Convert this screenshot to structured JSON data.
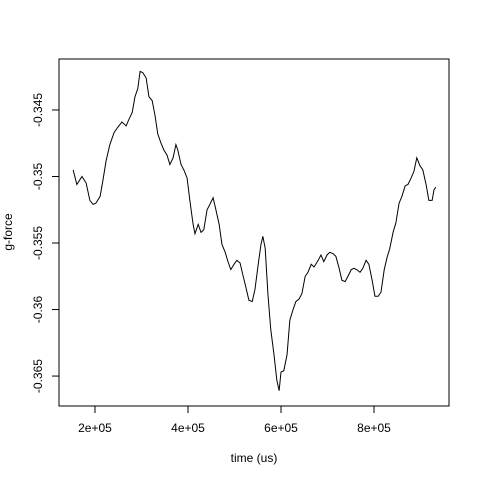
{
  "chart_data": {
    "type": "line",
    "x_label": "time (us)",
    "y_label": "g-force",
    "x": [
      153000,
      161000,
      172000,
      181000,
      189000,
      196000,
      202000,
      211000,
      217000,
      224000,
      232000,
      241000,
      249000,
      258000,
      267000,
      273000,
      280000,
      286000,
      292000,
      297000,
      303000,
      310000,
      316000,
      323000,
      329000,
      335000,
      342000,
      348000,
      355000,
      361000,
      368000,
      374000,
      378000,
      385000,
      391000,
      398000,
      404000,
      411000,
      415000,
      422000,
      428000,
      434000,
      441000,
      447000,
      454000,
      460000,
      467000,
      473000,
      480000,
      486000,
      492000,
      499000,
      505000,
      512000,
      518000,
      525000,
      531000,
      538000,
      544000,
      551000,
      557000,
      561000,
      566000,
      572000,
      578000,
      585000,
      591000,
      596000,
      600000,
      606000,
      613000,
      619000,
      626000,
      632000,
      639000,
      645000,
      652000,
      658000,
      665000,
      671000,
      680000,
      686000,
      692000,
      699000,
      705000,
      712000,
      718000,
      725000,
      731000,
      738000,
      744000,
      751000,
      757000,
      763000,
      770000,
      776000,
      783000,
      789000,
      796000,
      802000,
      809000,
      815000,
      822000,
      828000,
      834000,
      841000,
      847000,
      854000,
      860000,
      867000,
      873000,
      880000,
      886000,
      892000,
      899000,
      905000,
      912000,
      918000,
      925000,
      929000,
      933000
    ],
    "series": [
      {
        "color": "#000000",
        "values": [
          -0.3495,
          -0.3506,
          -0.35,
          -0.3505,
          -0.3518,
          -0.3521,
          -0.352,
          -0.3515,
          -0.3503,
          -0.3488,
          -0.3476,
          -0.3467,
          -0.3463,
          -0.3459,
          -0.3462,
          -0.3457,
          -0.3452,
          -0.344,
          -0.3434,
          -0.3421,
          -0.3422,
          -0.3426,
          -0.344,
          -0.3443,
          -0.3454,
          -0.3468,
          -0.3475,
          -0.348,
          -0.3484,
          -0.3491,
          -0.3486,
          -0.3476,
          -0.348,
          -0.3491,
          -0.3495,
          -0.3501,
          -0.3518,
          -0.3536,
          -0.3543,
          -0.3536,
          -0.3542,
          -0.354,
          -0.3525,
          -0.3521,
          -0.3516,
          -0.3525,
          -0.3536,
          -0.3551,
          -0.3557,
          -0.3564,
          -0.357,
          -0.3566,
          -0.3563,
          -0.3565,
          -0.3574,
          -0.3584,
          -0.3593,
          -0.3594,
          -0.3585,
          -0.3566,
          -0.3551,
          -0.3545,
          -0.3554,
          -0.3589,
          -0.3615,
          -0.3634,
          -0.3653,
          -0.3661,
          -0.3647,
          -0.3646,
          -0.3634,
          -0.3608,
          -0.36,
          -0.3594,
          -0.3592,
          -0.3588,
          -0.3575,
          -0.3572,
          -0.3566,
          -0.3568,
          -0.3563,
          -0.3559,
          -0.3564,
          -0.3559,
          -0.3557,
          -0.3558,
          -0.356,
          -0.3569,
          -0.3578,
          -0.3579,
          -0.3575,
          -0.357,
          -0.3569,
          -0.357,
          -0.3572,
          -0.3569,
          -0.3563,
          -0.3566,
          -0.3578,
          -0.359,
          -0.359,
          -0.3587,
          -0.357,
          -0.3561,
          -0.3554,
          -0.3542,
          -0.3535,
          -0.352,
          -0.3515,
          -0.3507,
          -0.3506,
          -0.3501,
          -0.3496,
          -0.3486,
          -0.3492,
          -0.3495,
          -0.3506,
          -0.3518,
          -0.3518,
          -0.351,
          -0.3508
        ]
      }
    ],
    "xlim": [
      122600,
      961300
    ],
    "xticks": [
      {
        "value": 200000,
        "label": "2e+05"
      },
      {
        "value": 400000,
        "label": "4e+05"
      },
      {
        "value": 600000,
        "label": "6e+05"
      },
      {
        "value": 800000,
        "label": "8e+05"
      }
    ],
    "ylim": [
      -0.36725,
      -0.34117
    ],
    "yticks": [
      -0.365,
      -0.36,
      -0.355,
      -0.35,
      -0.345
    ]
  }
}
